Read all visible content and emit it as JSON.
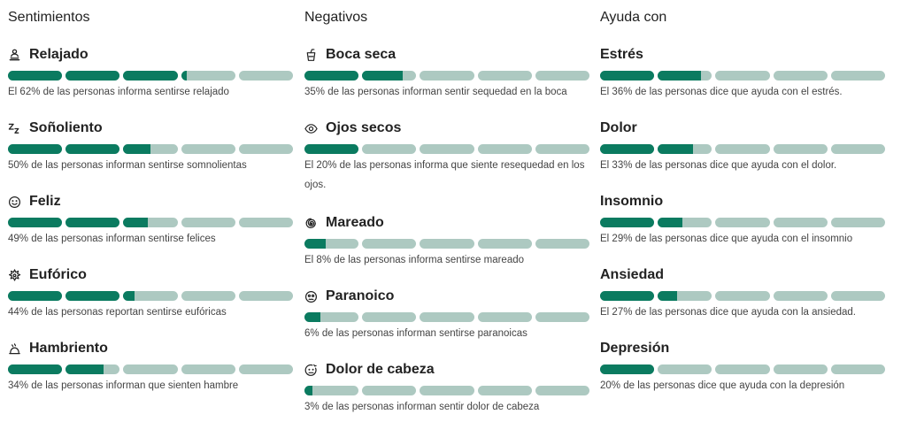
{
  "columns": [
    {
      "title": "Sentimientos",
      "items": [
        {
          "icon": "meditation-icon",
          "label": "Relajado",
          "percent": 62,
          "text": "El 62% de las personas informa sentirse relajado"
        },
        {
          "icon": "sleep-icon",
          "label": "Soñoliento",
          "percent": 50,
          "text": "50% de las personas informan sentirse somnolientas"
        },
        {
          "icon": "smile-icon",
          "label": "Feliz",
          "percent": 49,
          "text": "49% de las personas informan sentirse felices"
        },
        {
          "icon": "burst-icon",
          "label": "Eufórico",
          "percent": 44,
          "text": "44% de las personas reportan sentirse eufóricas"
        },
        {
          "icon": "food-icon",
          "label": "Hambriento",
          "percent": 34,
          "text": "34% de las personas informan que sienten hambre"
        }
      ]
    },
    {
      "title": "Negativos",
      "items": [
        {
          "icon": "cup-icon",
          "label": "Boca seca",
          "percent": 35,
          "text": "35% de las personas informan sentir sequedad en la boca"
        },
        {
          "icon": "eye-icon",
          "label": "Ojos secos",
          "percent": 20,
          "text": "El 20% de las personas informa que siente resequedad en los ojos."
        },
        {
          "icon": "spiral-icon",
          "label": "Mareado",
          "percent": 8,
          "text": "El 8% de las personas informa sentirse mareado"
        },
        {
          "icon": "paranoid-face-icon",
          "label": "Paranoico",
          "percent": 6,
          "text": "6% de las personas informan sentirse paranoicas"
        },
        {
          "icon": "headache-face-icon",
          "label": "Dolor de cabeza",
          "percent": 3,
          "text": "3% de las personas informan sentir dolor de cabeza"
        }
      ]
    },
    {
      "title": "Ayuda con",
      "items": [
        {
          "label": "Estrés",
          "percent": 36,
          "text": "El 36% de las personas dice que ayuda con el estrés."
        },
        {
          "label": "Dolor",
          "percent": 33,
          "text": "El 33% de las personas dice que ayuda con el dolor."
        },
        {
          "label": "Insomnio",
          "percent": 29,
          "text": "El 29% de las personas dice que ayuda con el insomnio"
        },
        {
          "label": "Ansiedad",
          "percent": 27,
          "text": "El 27% de las personas dice que ayuda con la ansiedad."
        },
        {
          "label": "Depresión",
          "percent": 20,
          "text": "20% de las personas dice que ayuda con la depresión"
        }
      ]
    }
  ]
}
